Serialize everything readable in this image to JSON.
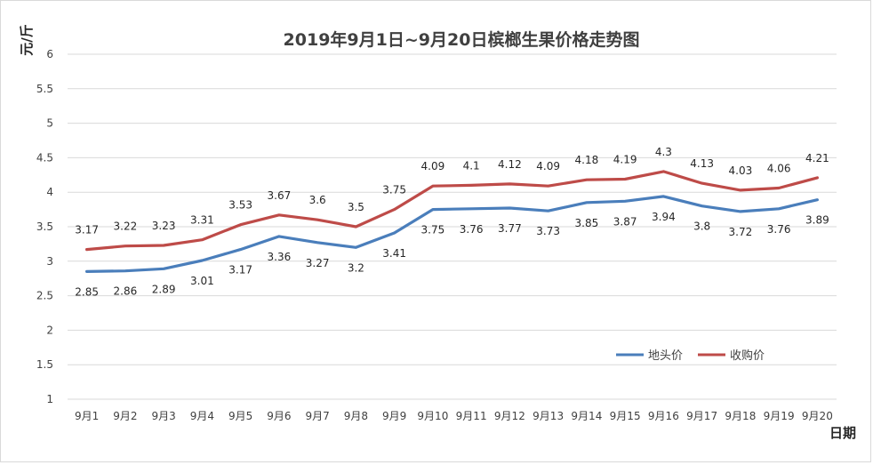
{
  "chart_data": {
    "type": "line",
    "title": "2019年9月1日~9月20日槟榔生果价格走势图",
    "ylabel": "元/斤",
    "xlabel": "日期",
    "ylim": [
      1,
      6
    ],
    "yticks": [
      "1",
      "1.5",
      "2",
      "2.5",
      "3",
      "3.5",
      "4",
      "4.5",
      "5",
      "5.5",
      "6"
    ],
    "grid": true,
    "legend_position": "lower-right",
    "categories": [
      "9月1",
      "9月2",
      "9月3",
      "9月4",
      "9月5",
      "9月6",
      "9月7",
      "9月8",
      "9月9",
      "9月10",
      "9月11",
      "9月12",
      "9月13",
      "9月14",
      "9月15",
      "9月16",
      "9月17",
      "9月18",
      "9月19",
      "9月20"
    ],
    "series": [
      {
        "name": "地头价",
        "color": "#4a7ebb",
        "values": [
          2.85,
          2.86,
          2.89,
          3.01,
          3.17,
          3.36,
          3.27,
          3.2,
          3.41,
          3.75,
          3.76,
          3.77,
          3.73,
          3.85,
          3.87,
          3.94,
          3.8,
          3.72,
          3.76,
          3.89
        ],
        "labels": [
          "2.85",
          "2.86",
          "2.89",
          "3.01",
          "3.17",
          "3.36",
          "3.27",
          "3.2",
          "3.41",
          "3.75",
          "3.76",
          "3.77",
          "3.73",
          "3.85",
          "3.87",
          "3.94",
          "3.8",
          "3.72",
          "3.76",
          "3.89"
        ],
        "label_position": "below"
      },
      {
        "name": "收购价",
        "color": "#be4b48",
        "values": [
          3.17,
          3.22,
          3.23,
          3.31,
          3.53,
          3.67,
          3.6,
          3.5,
          3.75,
          4.09,
          4.1,
          4.12,
          4.09,
          4.18,
          4.19,
          4.3,
          4.13,
          4.03,
          4.06,
          4.21
        ],
        "labels": [
          "3.17",
          "3.22",
          "3.23",
          "3.31",
          "3.53",
          "3.67",
          "3.6",
          "3.5",
          "3.75",
          "4.09",
          "4.1",
          "4.12",
          "4.09",
          "4.18",
          "4.19",
          "4.3",
          "4.13",
          "4.03",
          "4.06",
          "4.21"
        ],
        "label_position": "above"
      }
    ]
  }
}
